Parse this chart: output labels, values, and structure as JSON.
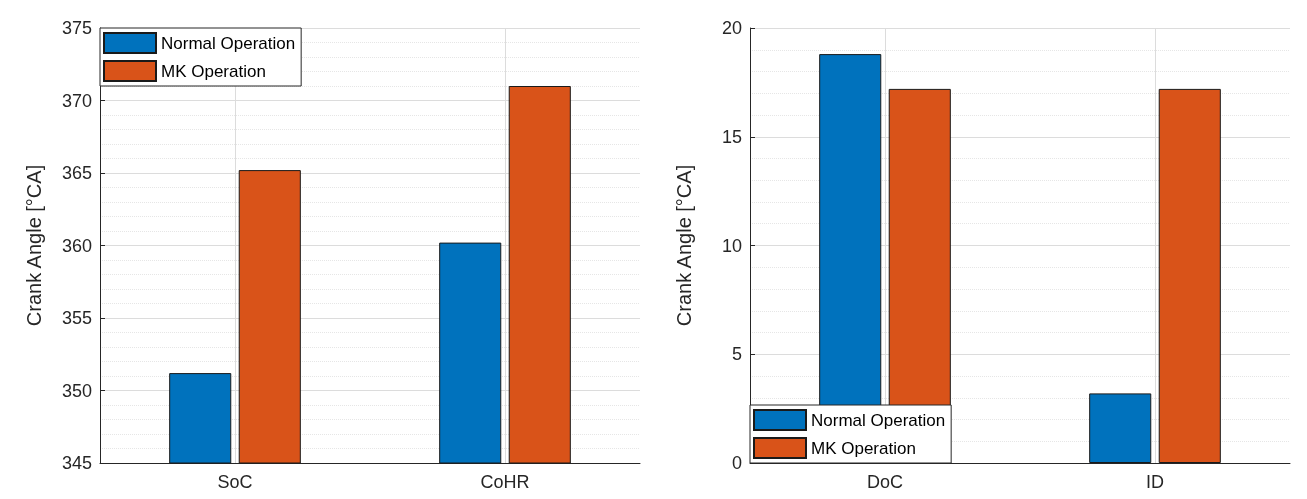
{
  "chart_data": [
    {
      "type": "bar",
      "ylabel": "Crank Angle [°CA]",
      "categories": [
        "SoC",
        "CoHR"
      ],
      "series": [
        {
          "name": "Normal Operation",
          "color": "#0072bd",
          "values": [
            351.2,
            360.2
          ]
        },
        {
          "name": "MK Operation",
          "color": "#d95319",
          "values": [
            365.2,
            371.0
          ]
        }
      ],
      "ylim": [
        345,
        375
      ],
      "yticks": [
        345,
        350,
        355,
        360,
        365,
        370,
        375
      ],
      "grid": true,
      "legend": "top left"
    },
    {
      "type": "bar",
      "ylabel": "Crank Angle [°CA]",
      "categories": [
        "DoC",
        "ID"
      ],
      "series": [
        {
          "name": "Normal Operation",
          "color": "#0072bd",
          "values": [
            18.8,
            3.2
          ]
        },
        {
          "name": "MK Operation",
          "color": "#d95319",
          "values": [
            17.2,
            17.2
          ]
        }
      ],
      "ylim": [
        0,
        20
      ],
      "yticks": [
        0,
        5,
        10,
        15,
        20
      ],
      "grid": true,
      "legend": "bottom left"
    }
  ]
}
